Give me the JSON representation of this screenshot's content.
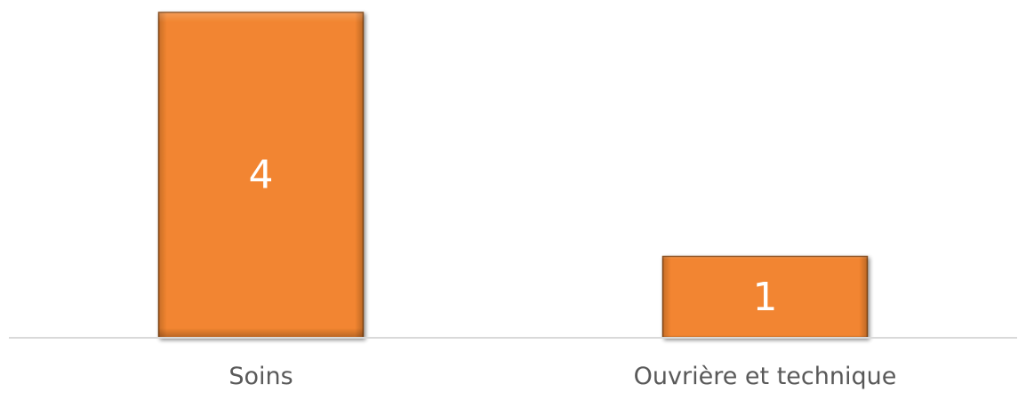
{
  "chart_data": {
    "type": "bar",
    "categories": [
      "Soins",
      "Ouvrière et technique"
    ],
    "values": [
      4,
      1
    ],
    "title": "",
    "xlabel": "",
    "ylabel": "",
    "ylim": [
      0,
      4
    ],
    "grid": false,
    "legend": "none",
    "show_data_labels": true,
    "bar_color": "#F28530",
    "bar_border_color": "#8A4A15",
    "data_label_color": "#ffffff",
    "axis_color": "#D9D9D9",
    "tick_label_color": "#595959"
  }
}
